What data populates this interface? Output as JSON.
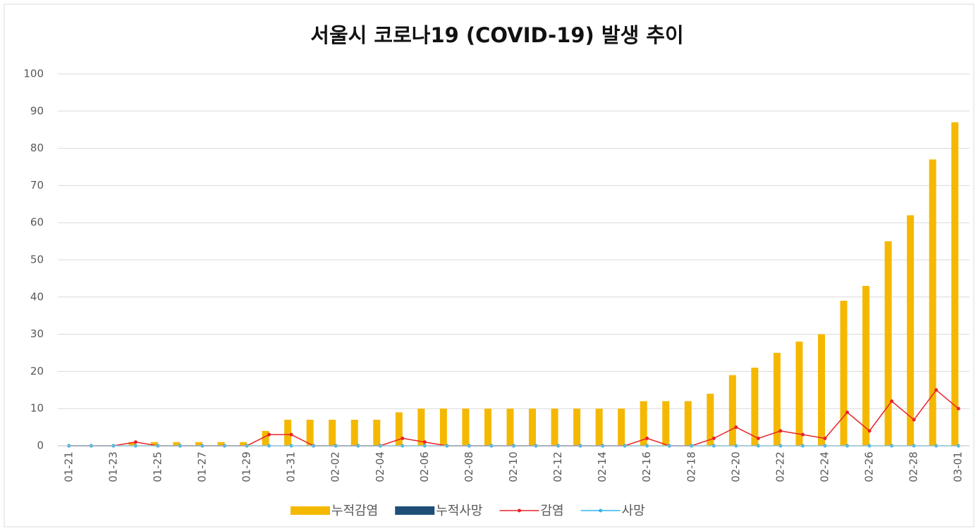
{
  "chart_data": {
    "type": "bar",
    "title": "서울시 코로나19 (COVID-19) 발생 추이",
    "categories": [
      "01-21",
      null,
      "01-23",
      null,
      "01-25",
      null,
      "01-27",
      null,
      "01-29",
      null,
      "01-31",
      null,
      "02-02",
      null,
      "02-04",
      null,
      "02-06",
      null,
      "02-08",
      null,
      "02-10",
      null,
      "02-12",
      null,
      "02-14",
      null,
      "02-16",
      null,
      "02-18",
      null,
      "02-20",
      null,
      "02-22",
      null,
      "02-24",
      null,
      "02-26",
      null,
      "02-28",
      null,
      "03-01"
    ],
    "series": [
      {
        "name": "누적감염",
        "type": "bar",
        "color": "#f5b800",
        "values": [
          0,
          0,
          0,
          1,
          1,
          1,
          1,
          1,
          1,
          4,
          7,
          7,
          7,
          7,
          7,
          9,
          10,
          10,
          10,
          10,
          10,
          10,
          10,
          10,
          10,
          10,
          12,
          12,
          12,
          14,
          19,
          21,
          25,
          28,
          30,
          39,
          43,
          55,
          62,
          77,
          87
        ]
      },
      {
        "name": "누적사망",
        "type": "bar",
        "color": "#1f4e79",
        "values": [
          0,
          0,
          0,
          0,
          0,
          0,
          0,
          0,
          0,
          0,
          0,
          0,
          0,
          0,
          0,
          0,
          0,
          0,
          0,
          0,
          0,
          0,
          0,
          0,
          0,
          0,
          0,
          0,
          0,
          0,
          0,
          0,
          0,
          0,
          0,
          0,
          0,
          0,
          0,
          0,
          0
        ]
      },
      {
        "name": "감염",
        "type": "line",
        "color": "#e8232a",
        "values": [
          0,
          0,
          0,
          1,
          0,
          0,
          0,
          0,
          0,
          3,
          3,
          0,
          0,
          0,
          0,
          2,
          1,
          0,
          0,
          0,
          0,
          0,
          0,
          0,
          0,
          0,
          2,
          0,
          0,
          2,
          5,
          2,
          4,
          3,
          2,
          9,
          4,
          12,
          7,
          15,
          10
        ]
      },
      {
        "name": "사망",
        "type": "line",
        "color": "#2eb6e8",
        "values": [
          0,
          0,
          0,
          0,
          0,
          0,
          0,
          0,
          0,
          0,
          0,
          0,
          0,
          0,
          0,
          0,
          0,
          0,
          0,
          0,
          0,
          0,
          0,
          0,
          0,
          0,
          0,
          0,
          0,
          0,
          0,
          0,
          0,
          0,
          0,
          0,
          0,
          0,
          0,
          0,
          0
        ]
      }
    ],
    "ylim": [
      0,
      100
    ],
    "yticks": [
      0,
      10,
      20,
      30,
      40,
      50,
      60,
      70,
      80,
      90,
      100
    ],
    "grid": true
  }
}
